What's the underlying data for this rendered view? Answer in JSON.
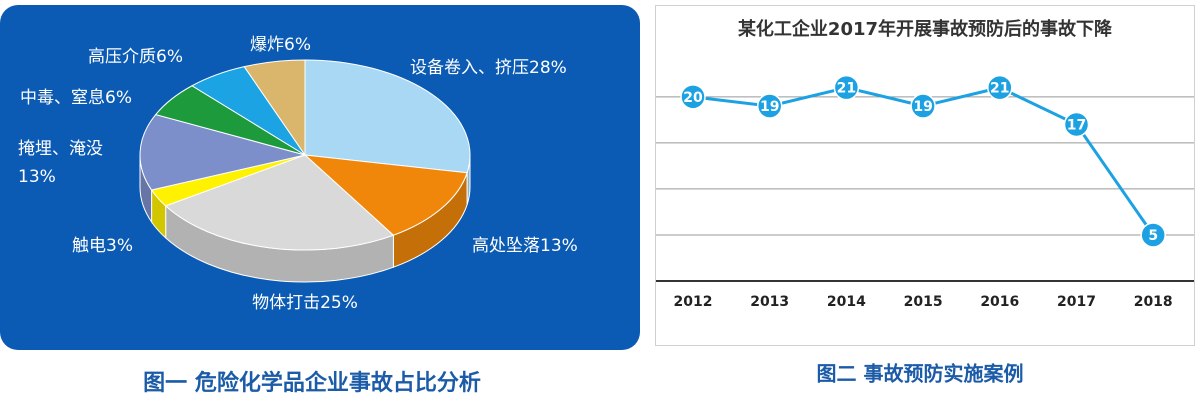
{
  "chart_data": [
    {
      "type": "pie3d",
      "caption": "图一  危险化学品企业事故占比分析",
      "categories": [
        "设备卷入、挤压",
        "高处坠落",
        "物体打击",
        "触电",
        "掩埋、淹没",
        "中毒、窒息",
        "高压介质",
        "爆炸"
      ],
      "values": [
        28,
        13,
        25,
        3,
        13,
        6,
        6,
        6
      ],
      "value_labels": [
        "28%",
        "13%",
        "25%",
        "3%",
        "13%",
        "6%",
        "6%",
        "6%"
      ],
      "colors": [
        "#a9d8f4",
        "#f0870a",
        "#d9d9d9",
        "#fff200",
        "#7c8fca",
        "#1c9a3c",
        "#1ca3e4",
        "#dab66c"
      ]
    },
    {
      "type": "line",
      "title": "某化工企业2017年开展事故预防后的事故下降",
      "caption": "图二  事故预防实施案例",
      "categories": [
        "2012",
        "2013",
        "2014",
        "2015",
        "2016",
        "2017",
        "2018"
      ],
      "values": [
        20,
        19,
        21,
        19,
        21,
        17,
        5
      ],
      "color": "#1ca1e2",
      "ylim": [
        0,
        24
      ],
      "yticks": [
        0,
        5,
        10,
        15,
        20
      ],
      "grid": true
    }
  ]
}
